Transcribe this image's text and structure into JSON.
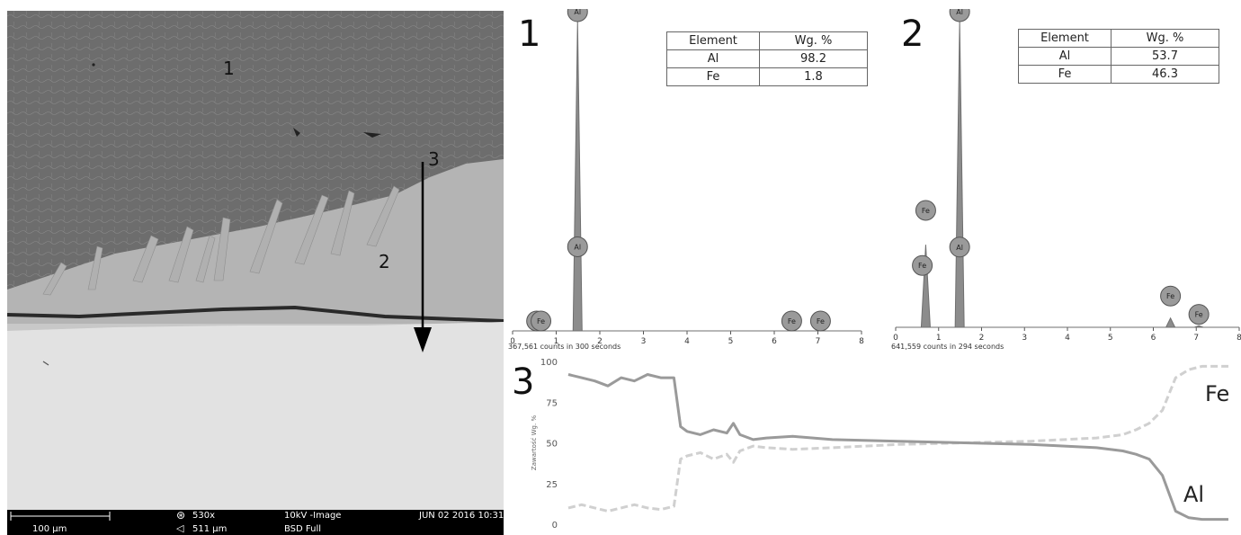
{
  "sem": {
    "region_labels": [
      "1",
      "2",
      "3"
    ],
    "info": {
      "scale": "100 µm",
      "magnification": "530x",
      "field": "511 µm",
      "mode": "10kV -Image",
      "detector": "BSD Full",
      "date": "JUN 02 2016 10:31"
    }
  },
  "panel_labels": [
    "1",
    "2",
    "3"
  ],
  "tables": [
    {
      "header": [
        "Element",
        "Wg. %"
      ],
      "rows": [
        [
          "Al",
          "98.2"
        ],
        [
          "Fe",
          "1.8"
        ]
      ]
    },
    {
      "header": [
        "Element",
        "Wg. %"
      ],
      "rows": [
        [
          "Al",
          "53.7"
        ],
        [
          "Fe",
          "46.3"
        ]
      ]
    }
  ],
  "chart_data": [
    {
      "type": "line",
      "title": "1",
      "x_ticks": [
        "0",
        "1",
        "2",
        "3",
        "4",
        "5",
        "6",
        "7",
        "8"
      ],
      "caption": "367,561 counts in 300 seconds",
      "peaks": [
        {
          "label": "Fe",
          "x": 0.6,
          "y": 0.01
        },
        {
          "label": "Al",
          "x": 1.49,
          "y": 1.0
        },
        {
          "label": "Fe",
          "x": 6.4,
          "y": 0.0
        },
        {
          "label": "Fe",
          "x": 7.06,
          "y": 0.0
        }
      ],
      "peak_labels": [
        {
          "label": "Al",
          "x": 1.49,
          "level": 1.0
        },
        {
          "label": "Al",
          "x": 1.49,
          "level": 0.24
        },
        {
          "label": "Fe",
          "x": 0.55,
          "level": 0.0
        },
        {
          "label": "Fe",
          "x": 0.65,
          "level": 0.0
        },
        {
          "label": "Fe",
          "x": 6.4,
          "level": 0.0
        },
        {
          "label": "Fe",
          "x": 7.06,
          "level": 0.0
        }
      ]
    },
    {
      "type": "line",
      "title": "2",
      "x_ticks": [
        "0",
        "1",
        "2",
        "3",
        "4",
        "5",
        "6",
        "7",
        "8"
      ],
      "caption": "641,559 counts in 294 seconds",
      "peaks": [
        {
          "label": "Fe",
          "x": 0.7,
          "y": 0.27
        },
        {
          "label": "Al",
          "x": 1.49,
          "y": 1.0
        },
        {
          "label": "Fe",
          "x": 6.4,
          "y": 0.03
        },
        {
          "label": "Fe",
          "x": 7.06,
          "y": 0.005
        }
      ],
      "peak_labels": [
        {
          "label": "Al",
          "x": 1.49,
          "level": 1.0
        },
        {
          "label": "Al",
          "x": 1.49,
          "level": 0.23
        },
        {
          "label": "Fe",
          "x": 0.7,
          "level": 0.35
        },
        {
          "label": "Fe",
          "x": 0.62,
          "level": 0.17
        },
        {
          "label": "Fe",
          "x": 6.4,
          "level": 0.07
        },
        {
          "label": "Fe",
          "x": 7.06,
          "level": 0.01
        }
      ]
    },
    {
      "type": "line",
      "title": "3",
      "ylabel": "Zawartość Wg. %",
      "ylim": [
        0,
        100
      ],
      "y_ticks": [
        "0",
        "25",
        "50",
        "75",
        "100"
      ],
      "xlim": [
        0,
        100
      ],
      "series": [
        {
          "name": "Fe",
          "x": [
            0,
            2,
            4,
            6,
            8,
            10,
            12,
            14,
            16,
            17,
            18,
            20,
            22,
            24,
            25,
            26,
            28,
            30,
            34,
            40,
            50,
            60,
            70,
            80,
            84,
            86,
            88,
            90,
            92,
            94,
            96,
            100
          ],
          "y": [
            10,
            12,
            10,
            8,
            10,
            12,
            10,
            9,
            11,
            40,
            42,
            44,
            40,
            43,
            38,
            45,
            48,
            47,
            46,
            47,
            49,
            50,
            51,
            53,
            55,
            58,
            62,
            70,
            90,
            95,
            97,
            97
          ]
        },
        {
          "name": "Al",
          "x": [
            0,
            2,
            4,
            6,
            8,
            10,
            12,
            14,
            16,
            17,
            18,
            20,
            22,
            24,
            25,
            26,
            28,
            30,
            34,
            40,
            50,
            60,
            70,
            80,
            84,
            86,
            88,
            90,
            92,
            94,
            96,
            100
          ],
          "y": [
            92,
            90,
            88,
            85,
            90,
            88,
            92,
            90,
            90,
            60,
            57,
            55,
            58,
            56,
            62,
            55,
            52,
            53,
            54,
            52,
            51,
            50,
            49,
            47,
            45,
            43,
            40,
            30,
            8,
            4,
            3,
            3
          ]
        }
      ]
    }
  ]
}
